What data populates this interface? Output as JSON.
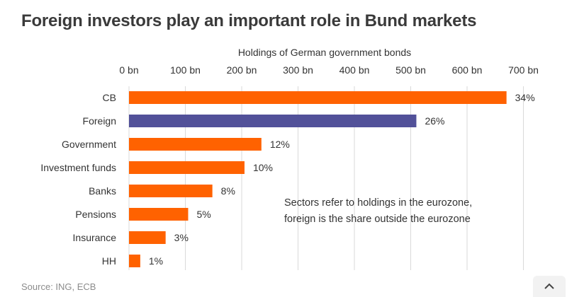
{
  "title": "Foreign investors play an important role in Bund markets",
  "source": "Source: ING, ECB",
  "scroll_top_icon": "chevron-up-icon",
  "colors": {
    "orange": "#ff6200",
    "purple": "#525199",
    "grid": "#d9d9d9",
    "text": "#333333"
  },
  "chart_data": {
    "type": "bar",
    "orientation": "horizontal",
    "title": "Foreign investors play an important role in Bund markets",
    "xlabel": "Holdings of German government bonds",
    "ylabel": "",
    "xlim": [
      0,
      700
    ],
    "x_ticks": [
      0,
      100,
      200,
      300,
      400,
      500,
      600,
      700
    ],
    "x_tick_labels": [
      "0 bn",
      "100 bn",
      "200 bn",
      "300 bn",
      "400 bn",
      "500 bn",
      "600 bn",
      "700 bn"
    ],
    "x_axis_position": "top",
    "grid": true,
    "categories": [
      "CB",
      "Foreign",
      "Government",
      "Investment funds",
      "Banks",
      "Pensions",
      "Insurance",
      "HH"
    ],
    "values": [
      670,
      510,
      235,
      205,
      148,
      105,
      65,
      20
    ],
    "data_labels": [
      "34%",
      "26%",
      "12%",
      "10%",
      "8%",
      "5%",
      "3%",
      "1%"
    ],
    "bar_colors": [
      "#ff6200",
      "#525199",
      "#ff6200",
      "#ff6200",
      "#ff6200",
      "#ff6200",
      "#ff6200",
      "#ff6200"
    ],
    "annotation": [
      "Sectors refer to holdings in the eurozone,",
      "foreign is the share outside the eurozone"
    ]
  }
}
